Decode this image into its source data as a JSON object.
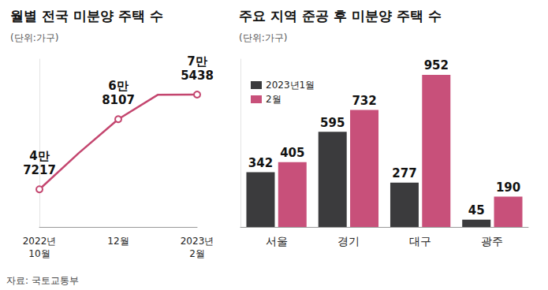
{
  "source": "자료: 국토교통부",
  "chart_data": [
    {
      "type": "line",
      "title": "월별 전국 미분양 주택 수",
      "subtitle": "(단위:가구)",
      "categories": [
        "2022년\n10월",
        null,
        "12월",
        null,
        "2023년\n2월"
      ],
      "values": [
        47217,
        58027,
        68107,
        75359,
        75438
      ],
      "value_labels": [
        "4만\n7217",
        null,
        "6만\n8107",
        null,
        "7만\n5438"
      ],
      "color": "#c4466f",
      "marker": "circle",
      "ylim": [
        36000,
        86000
      ],
      "grid": false,
      "tick_labels": "x",
      "data_labels": true
    },
    {
      "type": "bar",
      "title": "주요 지역 준공 후 미분양 주택 수",
      "subtitle": "(단위:가구)",
      "categories": [
        "서울",
        "경기",
        "대구",
        "광주"
      ],
      "series": [
        {
          "name": "2023년1월",
          "color": "#3b3b3d",
          "values": [
            342,
            595,
            277,
            45
          ]
        },
        {
          "name": "2월",
          "color": "#c8507a",
          "values": [
            405,
            732,
            952,
            190
          ]
        }
      ],
      "ylim": [
        0,
        1050
      ],
      "grid": false,
      "tick_labels": "x",
      "legend": "upper left",
      "data_labels": true
    }
  ]
}
